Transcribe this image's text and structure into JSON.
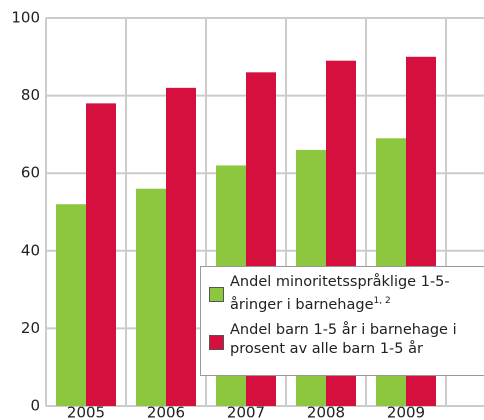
{
  "chart_data": {
    "type": "bar",
    "categories": [
      "2005",
      "2006",
      "2007",
      "2008",
      "2009"
    ],
    "series": [
      {
        "name": "Andel minoritetsspråklige 1-5-åringer i barnehage",
        "name_superscript": "1, 2",
        "color": "#8dc63f",
        "values": [
          52,
          56,
          62,
          66,
          69
        ]
      },
      {
        "name": "Andel barn 1-5 år i barnehage i prosent av alle barn 1-5 år",
        "color": "#d5103f",
        "values": [
          78,
          82,
          86,
          89,
          90
        ]
      }
    ],
    "ylim": [
      0,
      100
    ],
    "yticks": [
      0,
      20,
      40,
      60,
      80,
      100
    ],
    "grid": true
  }
}
